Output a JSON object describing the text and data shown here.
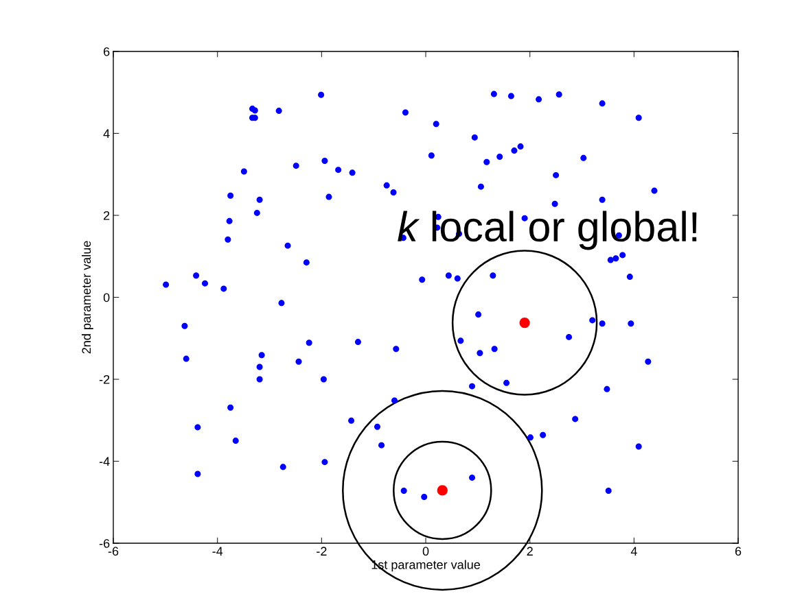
{
  "chart_data": {
    "type": "scatter",
    "xlabel": "1st parameter value",
    "ylabel": "2nd parameter value",
    "xlim": [
      -6,
      6
    ],
    "ylim": [
      -6,
      6
    ],
    "xticks": [
      -6,
      -4,
      -2,
      0,
      2,
      4,
      6
    ],
    "yticks": [
      -6,
      -4,
      -2,
      0,
      2,
      4,
      6
    ],
    "grid": false,
    "marker": "circle",
    "annotations": [
      "k local or global!"
    ],
    "series": [
      {
        "color": "#0000ff",
        "x": [
          -2.01,
          -3.33,
          -3.28,
          -3.33,
          -3.28,
          -2.82,
          -0.39,
          -3.49,
          -2.49,
          -1.94,
          -1.68,
          -1.41,
          -0.75,
          -0.62,
          -3.75,
          -3.19,
          -1.86,
          -3.24,
          -3.77,
          -3.8,
          -2.65,
          -2.29,
          -0.43,
          -4.99,
          -4.41,
          -4.24,
          -3.88,
          -0.07,
          1.31,
          1.64,
          2.17,
          2.56,
          3.39,
          4.09,
          0.2,
          0.94,
          0.11,
          1.17,
          1.42,
          1.7,
          1.82,
          3.03,
          2.5,
          1.06,
          4.39,
          2.48,
          3.39,
          0.24,
          0.22,
          1.9,
          0.64,
          3.71,
          3.55,
          3.65,
          3.78,
          0.44,
          0.61,
          1.29,
          3.92,
          -2.77,
          -4.63,
          -2.24,
          -1.3,
          -0.57,
          -4.6,
          -3.15,
          -2.44,
          -3.19,
          -3.19,
          -1.96,
          -0.6,
          -3.75,
          -1.43,
          -0.93,
          -4.38,
          -3.65,
          -0.85,
          -2.74,
          -1.94,
          -4.38,
          -0.42,
          -0.03,
          1.01,
          0.67,
          1.04,
          1.32,
          2.75,
          3.2,
          3.39,
          3.94,
          4.27,
          0.89,
          1.55,
          3.48,
          2.87,
          2.01,
          2.25,
          4.09,
          0.89,
          3.51
        ],
        "values": [
          4.94,
          4.6,
          4.56,
          4.38,
          4.38,
          4.55,
          4.51,
          3.07,
          3.21,
          3.33,
          3.11,
          3.04,
          2.73,
          2.56,
          2.48,
          2.38,
          2.45,
          2.06,
          1.86,
          1.41,
          1.26,
          0.85,
          1.45,
          0.31,
          0.53,
          0.34,
          0.21,
          0.43,
          4.96,
          4.91,
          4.83,
          4.95,
          4.73,
          4.38,
          4.23,
          3.9,
          3.46,
          3.3,
          3.43,
          3.58,
          3.68,
          3.4,
          2.98,
          2.7,
          2.6,
          2.28,
          2.38,
          1.96,
          1.7,
          1.93,
          1.55,
          1.51,
          0.91,
          0.95,
          1.03,
          0.53,
          0.46,
          0.53,
          0.5,
          -0.14,
          -0.7,
          -1.11,
          -1.09,
          -1.26,
          -1.5,
          -1.41,
          -1.57,
          -1.7,
          -2.0,
          -2.0,
          -2.52,
          -2.69,
          -3.01,
          -3.16,
          -3.17,
          -3.5,
          -3.61,
          -4.14,
          -4.02,
          -4.31,
          -4.72,
          -4.87,
          -0.42,
          -1.06,
          -1.36,
          -1.26,
          -0.97,
          -0.56,
          -0.64,
          -0.64,
          -1.57,
          -2.17,
          -2.09,
          -2.24,
          -2.97,
          -3.42,
          -3.36,
          -3.64,
          -4.4,
          -4.72
        ]
      },
      {
        "color": "#ff0000",
        "x": [
          1.9,
          0.32
        ],
        "values": [
          -0.62,
          -4.71
        ]
      }
    ]
  }
}
